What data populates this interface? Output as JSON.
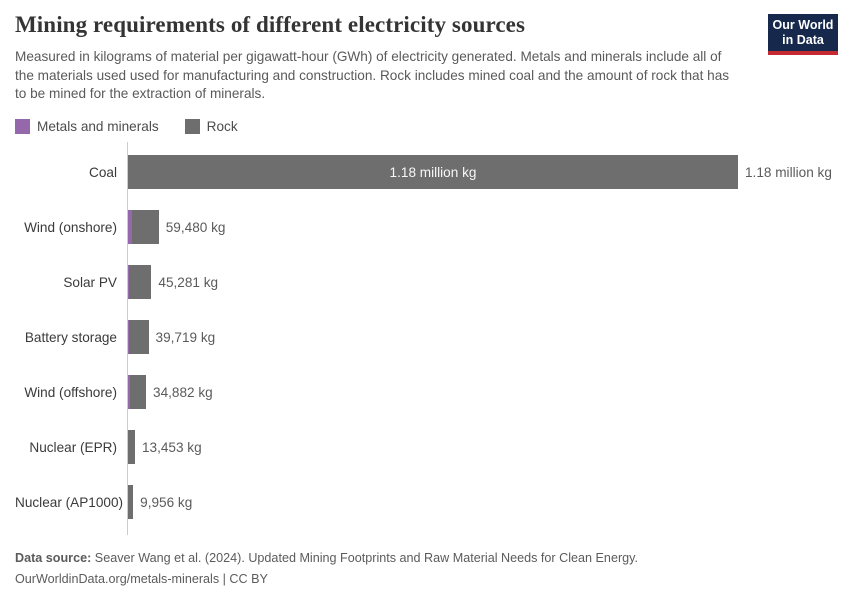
{
  "header": {
    "title": "Mining requirements of different electricity sources",
    "subtitle": "Measured in kilograms of material per gigawatt-hour (GWh) of electricity generated. Metals and minerals include all of the materials used used for manufacturing and construction. Rock includes mined coal and the amount of rock that has to be mined for the extraction of minerals.",
    "logo": {
      "line1": "Our World",
      "line2": "in Data",
      "bg_color": "#16294d",
      "accent_color": "#c52a32"
    }
  },
  "legend": [
    {
      "label": "Metals and minerals",
      "color": "#9468ab"
    },
    {
      "label": "Rock",
      "color": "#6e6e6e"
    }
  ],
  "chart_data": {
    "type": "bar",
    "orientation": "horizontal",
    "unit": "kg per GWh",
    "max_value": 1180000,
    "axis_color": "#cccccc",
    "series": [
      {
        "name": "Metals and minerals",
        "color": "#9468ab"
      },
      {
        "name": "Rock",
        "color": "#6e6e6e"
      }
    ],
    "rows": [
      {
        "category": "Coal",
        "total_kg": 1180000,
        "metals_kg_est": 800,
        "value_label": "1.18 million kg",
        "inside_label": "1.18 million kg"
      },
      {
        "category": "Wind (onshore)",
        "total_kg": 59480,
        "metals_kg_est": 7000,
        "value_label": "59,480 kg"
      },
      {
        "category": "Solar PV",
        "total_kg": 45281,
        "metals_kg_est": 2500,
        "value_label": "45,281 kg"
      },
      {
        "category": "Battery storage",
        "total_kg": 39719,
        "metals_kg_est": 2300,
        "value_label": "39,719 kg"
      },
      {
        "category": "Wind (offshore)",
        "total_kg": 34882,
        "metals_kg_est": 3200,
        "value_label": "34,882 kg"
      },
      {
        "category": "Nuclear (EPR)",
        "total_kg": 13453,
        "metals_kg_est": 900,
        "value_label": "13,453 kg"
      },
      {
        "category": "Nuclear (AP1000)",
        "total_kg": 9956,
        "metals_kg_est": 700,
        "value_label": "9,956 kg"
      }
    ]
  },
  "footer": {
    "source_label": "Data source:",
    "source_text": "Seaver Wang et al. (2024). Updated Mining Footprints and Raw Material Needs for Clean Energy.",
    "license_line": "OurWorldinData.org/metals-minerals | CC BY"
  }
}
